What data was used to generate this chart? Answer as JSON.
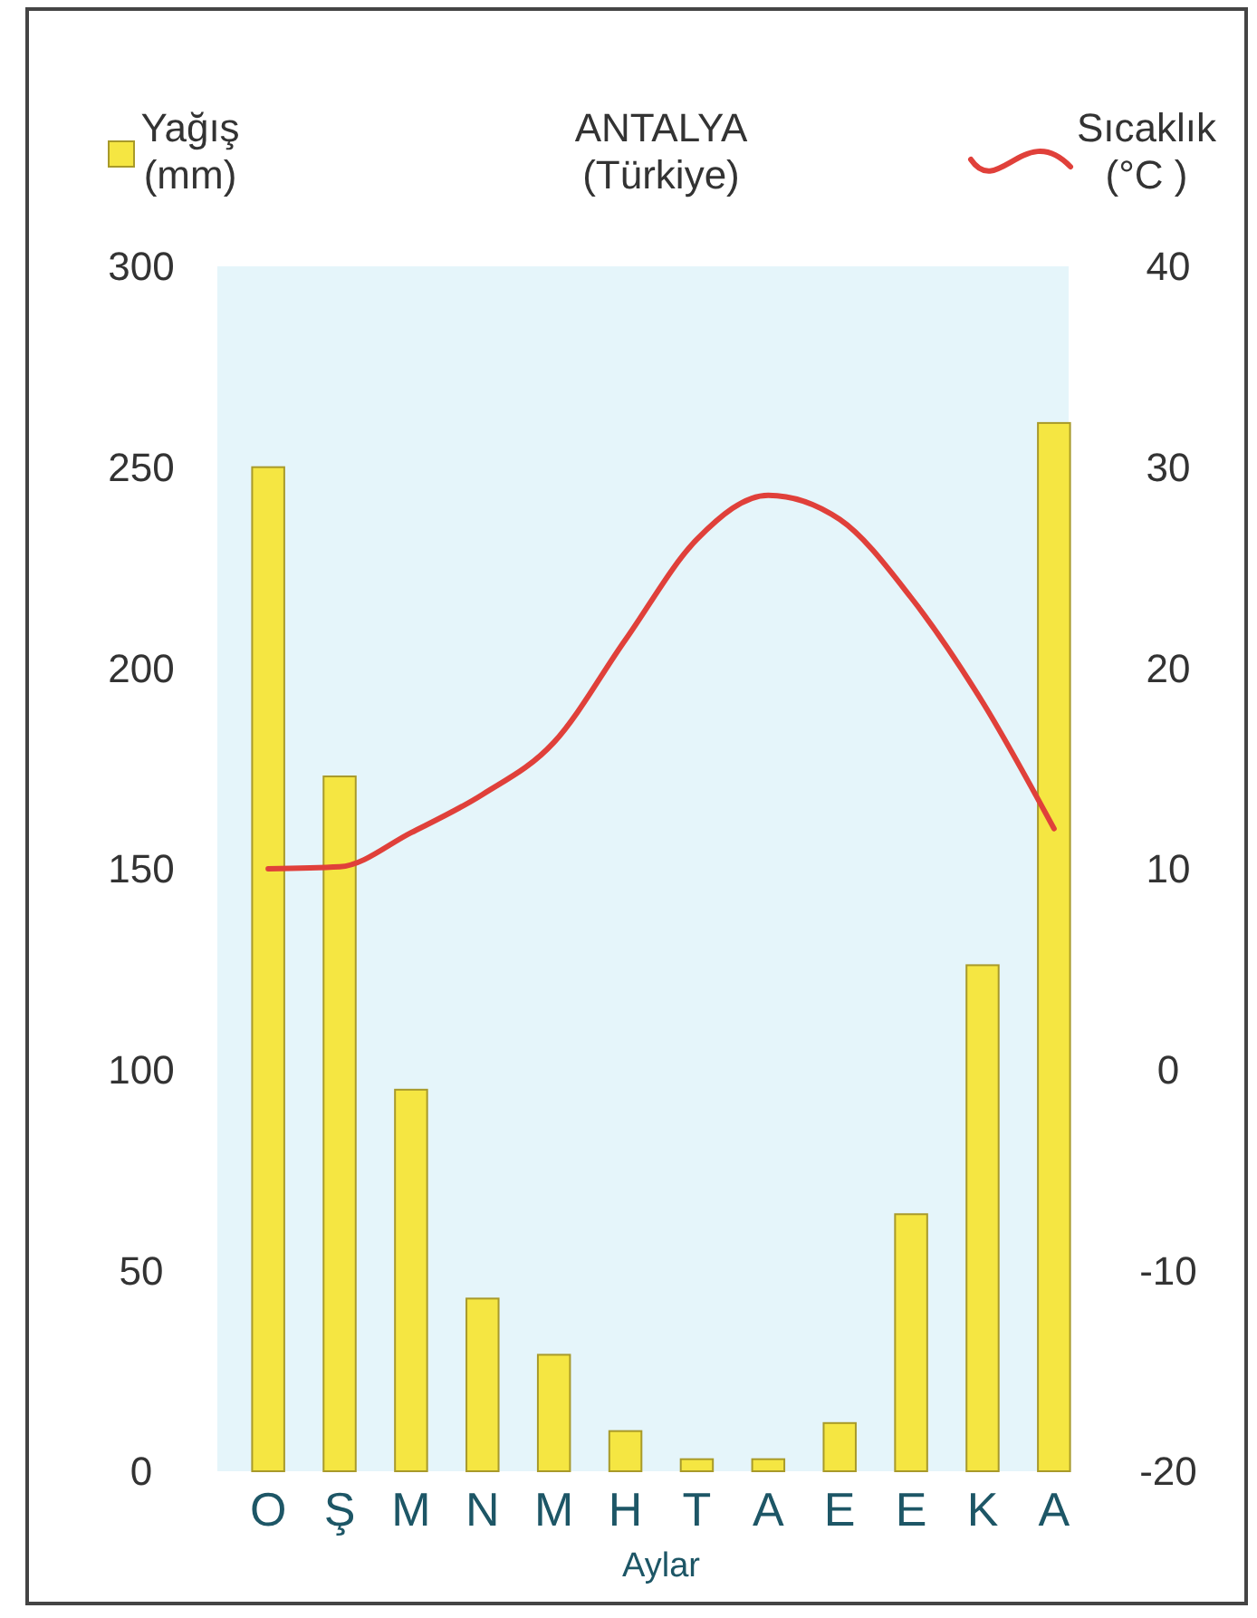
{
  "chart_data": {
    "type": "bar",
    "title": "ANTALYA (Türkiye)",
    "xlabel": "Aylar",
    "categories": [
      "O",
      "Ş",
      "M",
      "N",
      "M",
      "H",
      "T",
      "A",
      "E",
      "E",
      "K",
      "A"
    ],
    "series": [
      {
        "name": "Yağış (mm)",
        "color": "#f5e642",
        "values": [
          250,
          173,
          95,
          43,
          29,
          10,
          3,
          3,
          12,
          64,
          126,
          261
        ]
      },
      {
        "name": "Sıcaklık (°C )",
        "type": "line",
        "axis": "y2",
        "color": "#e0403a",
        "values": [
          10,
          10.1,
          11.8,
          13.7,
          16.3,
          21.4,
          26.4,
          28.6,
          27.4,
          23.5,
          18.3,
          12
        ]
      }
    ],
    "ylim": [
      0,
      300
    ],
    "yticks": [
      0,
      50,
      100,
      150,
      200,
      250,
      300
    ],
    "y2lim": [
      -20,
      40
    ],
    "y2ticks": [
      -20,
      -10,
      0,
      10,
      20,
      30,
      40
    ],
    "legend": "top"
  }
}
